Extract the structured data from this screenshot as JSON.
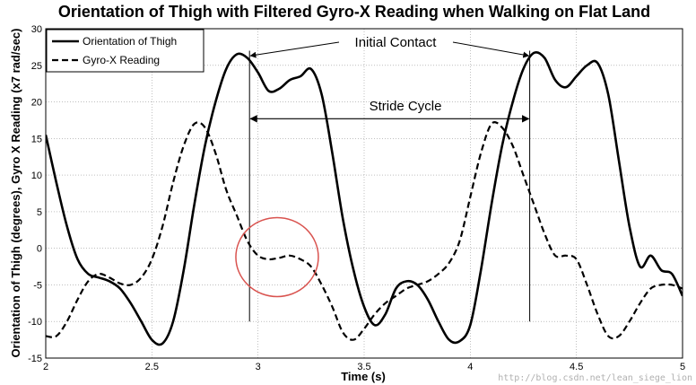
{
  "chart_data": {
    "type": "line",
    "title": "Orientation of Thigh with Filtered Gyro-X Reading when Walking on Flat Land",
    "xlabel": "Time (s)",
    "ylabel": "Orientation of Thigh (degrees), Gyro X Reading (x7 rad/sec)",
    "xlim": [
      2,
      5
    ],
    "ylim": [
      -15,
      30
    ],
    "x_ticks": [
      "2",
      "2.5",
      "3",
      "3.5",
      "4",
      "4.5",
      "5"
    ],
    "y_ticks": [
      "-15",
      "-10",
      "-5",
      "0",
      "5",
      "10",
      "15",
      "20",
      "25",
      "30"
    ],
    "grid": true,
    "legend_position": "top-left",
    "series": [
      {
        "name": "Orientation of Thigh",
        "line_style": "solid",
        "color": "#000000",
        "x": [
          2.0,
          2.05,
          2.1,
          2.15,
          2.2,
          2.25,
          2.3,
          2.35,
          2.4,
          2.45,
          2.5,
          2.55,
          2.6,
          2.65,
          2.7,
          2.75,
          2.8,
          2.85,
          2.9,
          2.95,
          3.0,
          3.05,
          3.1,
          3.15,
          3.2,
          3.25,
          3.3,
          3.35,
          3.4,
          3.45,
          3.5,
          3.55,
          3.6,
          3.65,
          3.7,
          3.75,
          3.8,
          3.85,
          3.9,
          3.95,
          4.0,
          4.05,
          4.1,
          4.15,
          4.2,
          4.25,
          4.3,
          4.35,
          4.4,
          4.45,
          4.5,
          4.55,
          4.6,
          4.65,
          4.7,
          4.75,
          4.8,
          4.85,
          4.9,
          4.95,
          5.0
        ],
        "values": [
          15.5,
          9,
          3,
          -1.5,
          -3.5,
          -4,
          -4.5,
          -5.5,
          -7.5,
          -10,
          -12.5,
          -13,
          -10,
          -3,
          6,
          14,
          20,
          24.5,
          26.5,
          26,
          24,
          21.5,
          21.8,
          23,
          23.5,
          24.5,
          21,
          13,
          4,
          -3,
          -8,
          -10.5,
          -9,
          -5.5,
          -4.5,
          -5,
          -7,
          -10,
          -12.5,
          -12.7,
          -10.5,
          -3,
          6,
          14,
          20,
          24.5,
          26.7,
          26,
          23,
          22,
          23.5,
          25,
          25.3,
          21,
          12,
          3,
          -2.5,
          -1,
          -3,
          -3.5,
          -6.5
        ]
      },
      {
        "name": "Gyro-X Reading",
        "line_style": "dashed",
        "color": "#000000",
        "x": [
          2.0,
          2.05,
          2.1,
          2.15,
          2.2,
          2.25,
          2.3,
          2.35,
          2.4,
          2.45,
          2.5,
          2.55,
          2.6,
          2.65,
          2.7,
          2.75,
          2.8,
          2.85,
          2.9,
          2.95,
          3.0,
          3.05,
          3.1,
          3.15,
          3.2,
          3.25,
          3.3,
          3.35,
          3.4,
          3.45,
          3.5,
          3.55,
          3.6,
          3.65,
          3.7,
          3.75,
          3.8,
          3.85,
          3.9,
          3.95,
          4.0,
          4.05,
          4.1,
          4.15,
          4.2,
          4.25,
          4.3,
          4.35,
          4.4,
          4.45,
          4.5,
          4.55,
          4.6,
          4.65,
          4.7,
          4.75,
          4.8,
          4.85,
          4.9,
          4.95,
          5.0
        ],
        "values": [
          -12,
          -12,
          -10,
          -7,
          -4.5,
          -3.5,
          -4,
          -4.8,
          -5,
          -4,
          -1.5,
          3,
          9,
          14,
          17,
          16.5,
          13,
          8,
          4.5,
          1,
          -1,
          -1.5,
          -1.3,
          -1,
          -1.5,
          -2.5,
          -5,
          -8,
          -11.5,
          -12.5,
          -11,
          -9,
          -7.5,
          -6.5,
          -5.5,
          -5,
          -4.5,
          -3.5,
          -2,
          1,
          7,
          13,
          17,
          16.5,
          14,
          10,
          6,
          2,
          -1,
          -1,
          -1.5,
          -5,
          -9,
          -12,
          -12,
          -10,
          -7.5,
          -5.5,
          -5,
          -5,
          -5.5
        ]
      }
    ],
    "annotations": [
      {
        "text": "Initial Contact"
      },
      {
        "text": "Stride Cycle"
      }
    ],
    "markers": {
      "vertical_lines_x": [
        2.96,
        4.28
      ],
      "circle_center": [
        3.09,
        -1.2
      ]
    }
  },
  "watermark": "http://blog.csdn.net/lean_siege_lion"
}
